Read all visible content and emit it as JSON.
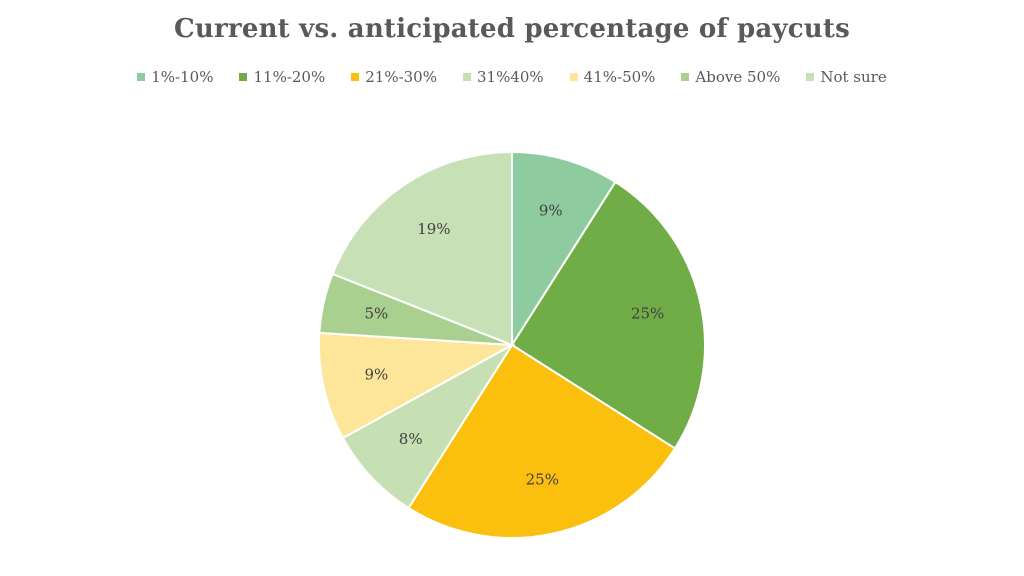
{
  "chart_data": {
    "type": "pie",
    "title": "Current vs. anticipated percentage of paycuts",
    "legend_position": "top",
    "categories": [
      "1%-10%",
      "11%-20%",
      "21%-30%",
      "31%40%",
      "41%-50%",
      "Above 50%",
      "Not sure"
    ],
    "values": [
      9,
      25,
      25,
      8,
      9,
      5,
      19
    ],
    "value_labels": [
      "9%",
      "25%",
      "25%",
      "8%",
      "9%",
      "5%",
      "19%"
    ],
    "colors": [
      "#8ecc9f",
      "#70ad47",
      "#fbbf0e",
      "#c6e0b4",
      "#fde69a",
      "#a9d08e",
      "#c7e0b6"
    ],
    "start": "12 o'clock",
    "direction": "clockwise"
  }
}
